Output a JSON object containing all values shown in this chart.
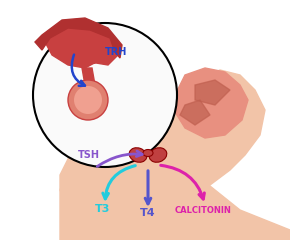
{
  "background_color": "#ffffff",
  "body_color": "#F2C4A8",
  "body_dark": "#E8A882",
  "brain_color": "#E8967A",
  "brain_dark": "#C05040",
  "thyroid_color": "#C04040",
  "circle_color": "#000000",
  "trh_arrow_color": "#2244CC",
  "tsh_arrow_color": "#8855CC",
  "t3_arrow_color": "#22CCDD",
  "t4_arrow_color": "#5555CC",
  "calcitonin_arrow_color": "#DD22AA",
  "trh_label": "TRH",
  "tsh_label": "TSH",
  "t3_label": "T3",
  "t4_label": "T4",
  "calcitonin_label": "CALCITONIN",
  "label_fontsize": 7,
  "label_fontsize_small": 6
}
